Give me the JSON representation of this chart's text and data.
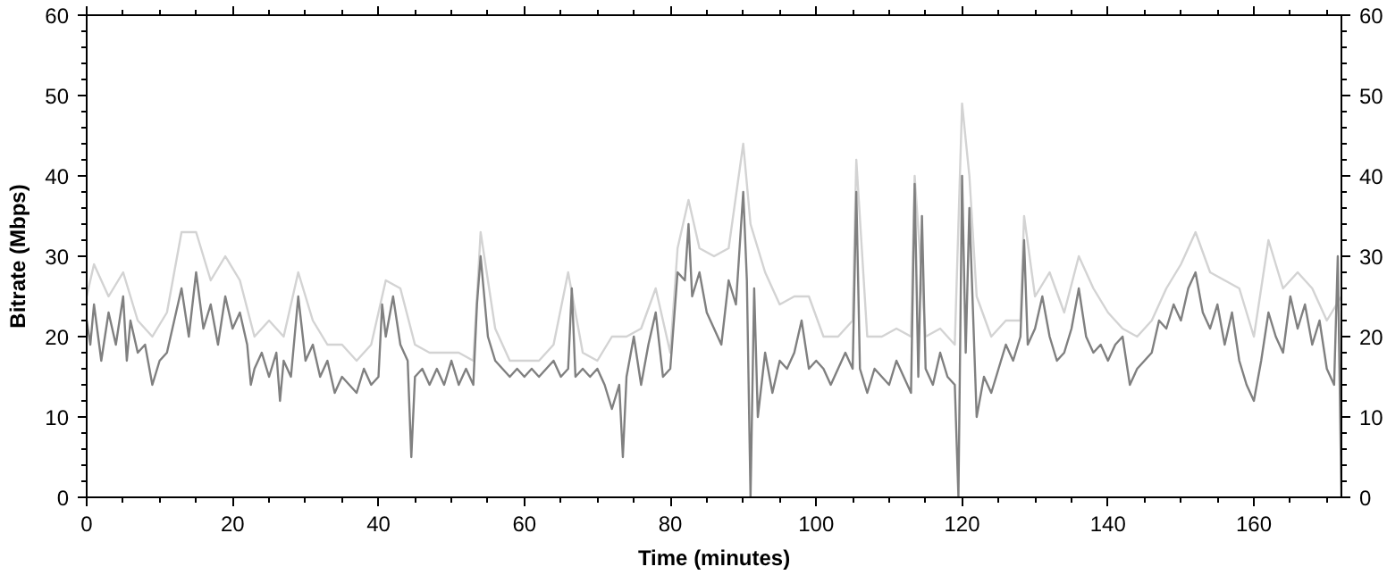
{
  "chart_data": {
    "type": "line",
    "xlabel": "Time (minutes)",
    "ylabel": "Bitrate (Mbps)",
    "xlim": [
      0,
      172
    ],
    "xticks": [
      0,
      20,
      40,
      60,
      80,
      100,
      120,
      140,
      160
    ],
    "ylim": [
      0,
      60
    ],
    "yticks": [
      0,
      10,
      20,
      30,
      40,
      50,
      60
    ],
    "y2lim": [
      0,
      60
    ],
    "y2ticks": [
      0,
      10,
      20,
      30,
      40,
      50,
      60
    ],
    "grid": false,
    "series": [
      {
        "color": "#d3d3d3",
        "x": [
          0,
          1,
          3,
          5,
          7,
          9,
          11,
          13,
          15,
          17,
          19,
          21,
          23,
          25,
          27,
          29,
          31,
          33,
          35,
          37,
          39,
          41,
          43,
          45,
          47,
          49,
          51,
          53,
          54,
          56,
          58,
          60,
          62,
          64,
          66,
          68,
          70,
          72,
          74,
          76,
          78,
          80,
          81,
          82.5,
          84,
          86,
          88,
          90,
          91,
          93,
          95,
          97,
          99,
          101,
          103,
          105,
          105.5,
          107,
          109,
          111,
          113,
          113.5,
          115,
          117,
          119,
          120,
          121,
          122,
          124,
          126,
          128,
          128.5,
          130,
          132,
          134,
          136,
          138,
          140,
          142,
          144,
          146,
          148,
          150,
          152,
          154,
          156,
          158,
          160,
          162,
          164,
          166,
          168,
          170,
          172
        ],
        "values": [
          25,
          29,
          25,
          28,
          22,
          20,
          23,
          33,
          33,
          27,
          30,
          27,
          20,
          22,
          20,
          28,
          22,
          19,
          19,
          17,
          19,
          27,
          26,
          19,
          18,
          18,
          18,
          17,
          33,
          21,
          17,
          17,
          17,
          19,
          28,
          18,
          17,
          20,
          20,
          21,
          26,
          18,
          31,
          37,
          31,
          30,
          31,
          44,
          34,
          28,
          24,
          25,
          25,
          20,
          20,
          22,
          42,
          20,
          20,
          21,
          20,
          40,
          20,
          21,
          19,
          49,
          40,
          25,
          20,
          22,
          22,
          35,
          25,
          28,
          23,
          30,
          26,
          23,
          21,
          20,
          22,
          26,
          29,
          33,
          28,
          27,
          26,
          20,
          32,
          26,
          28,
          26,
          22,
          25
        ]
      },
      {
        "color": "#808080",
        "x": [
          0,
          0.5,
          1,
          2,
          3,
          4,
          5,
          5.5,
          6,
          7,
          8,
          9,
          10,
          11,
          12,
          13,
          14,
          15,
          16,
          17,
          18,
          19,
          20,
          21,
          22,
          22.5,
          23,
          24,
          25,
          26,
          26.5,
          27,
          28,
          29,
          30,
          31,
          32,
          33,
          34,
          35,
          36,
          37,
          38,
          39,
          40,
          40.5,
          41,
          42,
          43,
          44,
          44.5,
          45,
          46,
          47,
          48,
          49,
          50,
          51,
          52,
          53,
          53.5,
          54,
          55,
          56,
          57,
          58,
          59,
          60,
          61,
          62,
          63,
          64,
          65,
          66,
          66.5,
          67,
          68,
          69,
          70,
          71,
          72,
          73,
          73.5,
          74,
          75,
          76,
          77,
          78,
          79,
          80,
          81,
          82,
          82.5,
          83,
          84,
          85,
          86,
          87,
          88,
          89,
          90,
          90.5,
          91,
          91.5,
          92,
          93,
          94,
          95,
          96,
          97,
          98,
          99,
          100,
          101,
          102,
          103,
          104,
          105,
          105.5,
          106,
          107,
          108,
          109,
          110,
          111,
          112,
          113,
          113.5,
          114,
          114.5,
          115,
          116,
          117,
          118,
          119,
          119.5,
          120,
          120.5,
          121,
          122,
          123,
          124,
          125,
          126,
          127,
          128,
          128.5,
          129,
          130,
          131,
          132,
          133,
          134,
          135,
          136,
          137,
          138,
          139,
          140,
          141,
          142,
          143,
          144,
          145,
          146,
          147,
          148,
          149,
          150,
          151,
          152,
          153,
          154,
          155,
          156,
          157,
          158,
          159,
          160,
          161,
          162,
          163,
          164,
          165,
          166,
          167,
          168,
          169,
          170,
          171,
          171.5,
          172
        ],
        "values": [
          22,
          19,
          24,
          17,
          23,
          19,
          25,
          17,
          22,
          18,
          19,
          14,
          17,
          18,
          22,
          26,
          20,
          28,
          21,
          24,
          19,
          25,
          21,
          23,
          19,
          14,
          16,
          18,
          15,
          18,
          12,
          17,
          15,
          25,
          17,
          19,
          15,
          17,
          13,
          15,
          14,
          13,
          16,
          14,
          15,
          24,
          20,
          25,
          19,
          17,
          5,
          15,
          16,
          14,
          16,
          14,
          17,
          14,
          16,
          14,
          24,
          30,
          20,
          17,
          16,
          15,
          16,
          15,
          16,
          15,
          16,
          17,
          15,
          16,
          26,
          15,
          16,
          15,
          16,
          14,
          11,
          14,
          5,
          15,
          20,
          14,
          19,
          23,
          15,
          16,
          28,
          27,
          34,
          25,
          28,
          23,
          21,
          19,
          27,
          24,
          38,
          27,
          0,
          26,
          10,
          18,
          13,
          17,
          16,
          18,
          22,
          16,
          17,
          16,
          14,
          16,
          18,
          16,
          38,
          16,
          13,
          16,
          15,
          14,
          17,
          15,
          13,
          39,
          15,
          35,
          16,
          14,
          18,
          15,
          14,
          0,
          40,
          18,
          36,
          10,
          15,
          13,
          16,
          19,
          17,
          20,
          32,
          19,
          21,
          25,
          20,
          17,
          18,
          21,
          26,
          20,
          18,
          19,
          17,
          19,
          20,
          14,
          16,
          17,
          18,
          22,
          21,
          24,
          22,
          26,
          28,
          23,
          21,
          24,
          19,
          23,
          17,
          14,
          12,
          17,
          23,
          20,
          18,
          25,
          21,
          24,
          19,
          22,
          16,
          14,
          30,
          0
        ]
      }
    ]
  }
}
